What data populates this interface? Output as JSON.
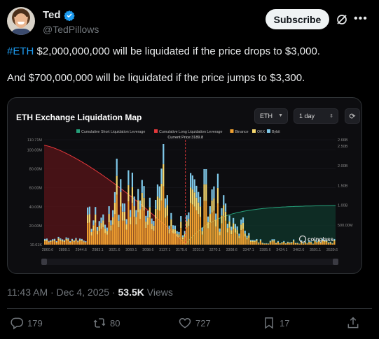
{
  "author": {
    "name": "Ted",
    "handle": "@TedPillows"
  },
  "header": {
    "subscribe_label": "Subscribe"
  },
  "icons": {
    "verified": "verified-badge-icon",
    "grok": "grok-icon",
    "more": "more-icon"
  },
  "tweet": {
    "hashtag": "#ETH",
    "line1": " $2,000,000,000 will be liquidated if the price drops to $3,000.",
    "line2": "And $700,000,000 will be liquidated if the price jumps to $3,300."
  },
  "media": {
    "controls": {
      "asset": "ETH",
      "range": "1 day"
    },
    "watermark": "coinglass"
  },
  "chart_data": {
    "type": "bar",
    "title": "ETH Exchange Liquidation Map",
    "annotation": "Current Price:3189.8",
    "current_price": 3189.8,
    "legend": [
      {
        "name": "Cumulative Short Liquidation Leverage",
        "color": "#26a17b"
      },
      {
        "name": "Cumulative Long Liquidation Leverage",
        "color": "#e5383b"
      },
      {
        "name": "Binance",
        "color": "#f0a030"
      },
      {
        "name": "OKX",
        "color": "#f5d76e"
      },
      {
        "name": "Bybit",
        "color": "#7fc8e8"
      }
    ],
    "x_ticks": [
      "2860.6",
      "2899.1",
      "2944.6",
      "2983.1",
      "3021.6",
      "3060.1",
      "3098.6",
      "3137.1",
      "3175.6",
      "3231.6",
      "3270.1",
      "3308.6",
      "3347.1",
      "3385.6",
      "3424.1",
      "3462.6",
      "3501.1",
      "3539.6"
    ],
    "xlim": [
      2860.6,
      3539.6
    ],
    "y_left_ticks": [
      "110.71M",
      "100.00M",
      "80.00M",
      "60.00M",
      "40.00M",
      "20.00M",
      "10.61K"
    ],
    "ylim_left": [
      0,
      110.71
    ],
    "y_right_ticks": [
      "2.66B",
      "2.50B",
      "2.00B",
      "1.50B",
      "1.00B",
      "500.00M"
    ],
    "ylim_right": [
      0,
      2.66
    ]
  },
  "meta": {
    "time": "11:43 AM · Dec 4, 2025 · ",
    "views_count": "53.5K",
    "views_label": " Views"
  },
  "actions": {
    "replies": "179",
    "reposts": "80",
    "likes": "727",
    "bookmarks": "17"
  }
}
